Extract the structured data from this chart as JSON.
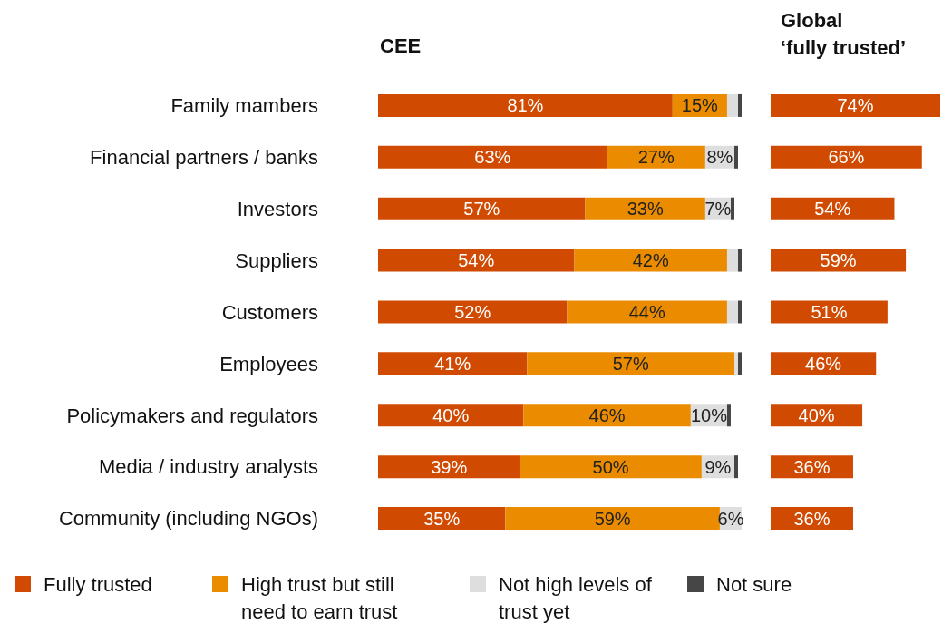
{
  "chart_data": [
    {
      "type": "bar",
      "title": "CEE",
      "orientation": "horizontal",
      "stacked": true,
      "categories": [
        "Family mambers",
        "Financial partners / banks",
        "Investors",
        "Suppliers",
        "Customers",
        "Employees",
        "Policymakers and regulators",
        "Media / industry analysts",
        "Community (including NGOs)"
      ],
      "xlim": [
        0,
        100
      ],
      "tick_labels": "y",
      "legend": "bottom",
      "series": [
        {
          "name": "Fully trusted",
          "color": "#d04a02",
          "values": [
            81,
            63,
            57,
            54,
            52,
            41,
            40,
            39,
            35
          ],
          "value_labels": [
            "81%",
            "63%",
            "57%",
            "54%",
            "52%",
            "41%",
            "40%",
            "39%",
            "35%"
          ]
        },
        {
          "name": "High trust but still need to earn trust",
          "color": "#eb8c00",
          "values": [
            15,
            27,
            33,
            42,
            44,
            57,
            46,
            50,
            59
          ],
          "value_labels": [
            "15%",
            "27%",
            "33%",
            "42%",
            "44%",
            "57%",
            "46%",
            "50%",
            "59%"
          ]
        },
        {
          "name": "Not high levels of trust yet",
          "color": "#dedede",
          "values": [
            3,
            8,
            7,
            3,
            3,
            1,
            10,
            9,
            6
          ],
          "value_labels": [
            null,
            "8%",
            "7%",
            null,
            null,
            null,
            "10%",
            "9%",
            "6%"
          ]
        },
        {
          "name": "Not sure",
          "color": "#464646",
          "values": [
            1,
            1,
            1,
            1,
            1,
            1,
            1,
            1,
            null
          ],
          "value_labels": [
            null,
            null,
            null,
            null,
            null,
            null,
            null,
            null,
            null
          ]
        }
      ]
    },
    {
      "type": "bar",
      "title": "Global\n‘fully trusted’",
      "orientation": "horizontal",
      "tick_labels": false,
      "color": "#d04a02",
      "values": [
        74,
        66,
        54,
        59,
        51,
        46,
        40,
        36,
        36
      ],
      "value_labels": [
        "74%",
        "66%",
        "54%",
        "59%",
        "51%",
        "46%",
        "40%",
        "36%",
        "36%"
      ]
    }
  ]
}
